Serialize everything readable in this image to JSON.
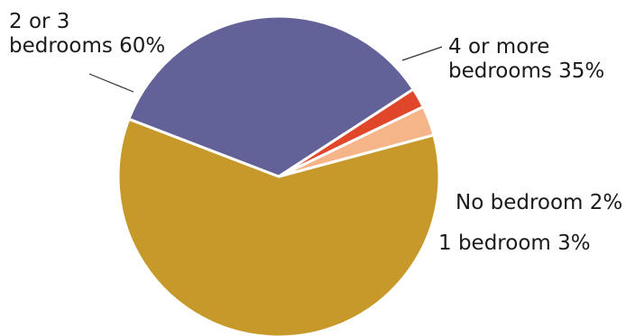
{
  "chart_data": {
    "type": "pie",
    "unit": "%",
    "slices": [
      {
        "label": "4 or more bedrooms 35%",
        "label_lines": [
          "4 or more",
          "bedrooms 35%"
        ],
        "value": 35,
        "color": "#626198"
      },
      {
        "label": "No bedroom 2%",
        "label_lines": [
          "No bedroom 2%"
        ],
        "value": 2,
        "color": "#e0462a"
      },
      {
        "label": "1 bedroom 3%",
        "label_lines": [
          "1 bedroom 3%"
        ],
        "value": 3,
        "color": "#f6b588"
      },
      {
        "label": "2 or 3 bedrooms 60%",
        "label_lines": [
          "2 or 3",
          "bedrooms 60%"
        ],
        "value": 60,
        "color": "#c7992b"
      }
    ]
  }
}
